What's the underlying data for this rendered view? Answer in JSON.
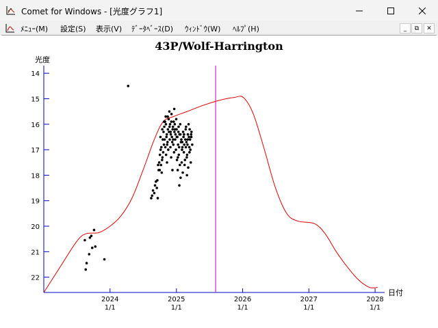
{
  "window": {
    "title": "Comet for Windows - [光度グラフ1]",
    "icon": "chart-icon",
    "buttons": {
      "minimize": "─",
      "maximize": "☐",
      "close": "✕"
    }
  },
  "menubar": {
    "items": [
      "ﾒﾆｭｰ(M)",
      "設定(S)",
      "表示(V)",
      "ﾃﾞｰﾀﾍﾞｰｽ(D)",
      "ｳｨﾝﾄﾞｳ(W)",
      "ﾍﾙﾌﾟ(H)"
    ],
    "mdi_buttons": [
      "_",
      "⧉",
      "✕"
    ]
  },
  "chart_data": {
    "type": "scatter",
    "title": "43P/Wolf-Harrington",
    "ylabel": "光度",
    "xlabel": "日付",
    "ylim": [
      14,
      22.6
    ],
    "y_inverted": true,
    "xlim": [
      "2023-01-01",
      "2028-02-15"
    ],
    "yticks": [
      14,
      15,
      16,
      17,
      18,
      19,
      20,
      21,
      22
    ],
    "xticks": [
      {
        "date": "2024-01-01",
        "label1": "2024",
        "label2": "1/1"
      },
      {
        "date": "2025-01-01",
        "label1": "2025",
        "label2": "1/1"
      },
      {
        "date": "2026-01-01",
        "label1": "2026",
        "label2": "1/1"
      },
      {
        "date": "2027-01-01",
        "label1": "2027",
        "label2": "1/1"
      },
      {
        "date": "2028-01-01",
        "label1": "2028",
        "label2": "1/1"
      }
    ],
    "current_date": "2025-08-05",
    "colors": {
      "curve": "#e00000",
      "current_line": "#c000c0",
      "axis": "#0000c0",
      "points": "#000000"
    },
    "predicted_curve": [
      [
        "2023-01-01",
        22.6
      ],
      [
        "2023-04-01",
        21.6
      ],
      [
        "2023-07-01",
        20.6
      ],
      [
        "2023-08-20",
        20.3
      ],
      [
        "2023-11-01",
        20.25
      ],
      [
        "2024-01-01",
        20.0
      ],
      [
        "2024-03-01",
        19.6
      ],
      [
        "2024-05-01",
        18.9
      ],
      [
        "2024-07-01",
        17.8
      ],
      [
        "2024-09-01",
        16.6
      ],
      [
        "2024-10-20",
        15.9
      ],
      [
        "2024-12-15",
        15.7
      ],
      [
        "2025-03-01",
        15.5
      ],
      [
        "2025-06-01",
        15.25
      ],
      [
        "2025-09-01",
        15.05
      ],
      [
        "2025-11-15",
        14.95
      ],
      [
        "2026-01-05",
        14.95
      ],
      [
        "2026-03-01",
        15.6
      ],
      [
        "2026-05-01",
        17.0
      ],
      [
        "2026-07-01",
        18.5
      ],
      [
        "2026-09-01",
        19.5
      ],
      [
        "2026-11-01",
        19.8
      ],
      [
        "2027-02-01",
        19.9
      ],
      [
        "2027-04-01",
        20.3
      ],
      [
        "2027-06-01",
        21.0
      ],
      [
        "2027-08-01",
        21.6
      ],
      [
        "2027-10-01",
        22.1
      ],
      [
        "2027-12-01",
        22.4
      ],
      [
        "2028-01-15",
        22.4
      ]
    ],
    "observations": [
      [
        "2024-04-10",
        14.5
      ],
      [
        "2023-09-12",
        20.45
      ],
      [
        "2023-09-20",
        20.38
      ],
      [
        "2023-10-05",
        20.15
      ],
      [
        "2023-10-12",
        20.8
      ],
      [
        "2023-09-25",
        20.85
      ],
      [
        "2023-09-08",
        21.1
      ],
      [
        "2023-08-25",
        21.45
      ],
      [
        "2023-08-20",
        21.7
      ],
      [
        "2023-12-01",
        21.3
      ],
      [
        "2023-08-15",
        20.55
      ],
      [
        "2024-08-15",
        18.9
      ],
      [
        "2024-08-20",
        18.8
      ],
      [
        "2024-08-25",
        18.6
      ],
      [
        "2024-09-01",
        18.7
      ],
      [
        "2024-09-05",
        18.4
      ],
      [
        "2024-09-10",
        18.25
      ],
      [
        "2024-09-15",
        18.5
      ],
      [
        "2024-09-20",
        18.9
      ],
      [
        "2024-09-25",
        17.8
      ],
      [
        "2024-09-28",
        17.5
      ],
      [
        "2024-10-02",
        17.2
      ],
      [
        "2024-10-06",
        17.0
      ],
      [
        "2024-10-10",
        16.9
      ],
      [
        "2024-10-14",
        17.4
      ],
      [
        "2024-10-18",
        16.6
      ],
      [
        "2024-10-22",
        16.3
      ],
      [
        "2024-10-26",
        16.1
      ],
      [
        "2024-10-30",
        15.9
      ],
      [
        "2024-11-03",
        15.7
      ],
      [
        "2024-11-07",
        16.5
      ],
      [
        "2024-11-11",
        16.8
      ],
      [
        "2024-11-15",
        16.2
      ],
      [
        "2024-11-19",
        15.8
      ],
      [
        "2024-11-23",
        15.5
      ],
      [
        "2024-11-27",
        16.0
      ],
      [
        "2024-12-01",
        16.4
      ],
      [
        "2024-12-05",
        15.6
      ],
      [
        "2024-12-09",
        16.7
      ],
      [
        "2024-12-13",
        16.1
      ],
      [
        "2024-12-17",
        15.9
      ],
      [
        "2024-12-21",
        16.3
      ],
      [
        "2024-12-25",
        16.6
      ],
      [
        "2024-12-29",
        17.0
      ],
      [
        "2025-01-02",
        16.2
      ],
      [
        "2025-01-06",
        16.5
      ],
      [
        "2025-01-10",
        16.8
      ],
      [
        "2025-01-14",
        17.2
      ],
      [
        "2025-01-18",
        16.4
      ],
      [
        "2025-01-22",
        16.0
      ],
      [
        "2025-01-26",
        16.7
      ],
      [
        "2025-01-30",
        17.5
      ],
      [
        "2025-02-03",
        16.9
      ],
      [
        "2025-02-07",
        16.3
      ],
      [
        "2025-02-11",
        17.1
      ],
      [
        "2025-02-15",
        17.6
      ],
      [
        "2025-02-19",
        16.6
      ],
      [
        "2025-02-23",
        16.1
      ],
      [
        "2025-02-27",
        17.3
      ],
      [
        "2025-03-03",
        16.8
      ],
      [
        "2025-03-07",
        17.7
      ],
      [
        "2025-03-11",
        16.5
      ],
      [
        "2025-03-15",
        16.2
      ],
      [
        "2025-03-19",
        17.0
      ],
      [
        "2025-03-23",
        16.4
      ],
      [
        "2024-10-08",
        17.6
      ],
      [
        "2024-10-12",
        17.9
      ],
      [
        "2024-10-16",
        17.3
      ],
      [
        "2024-10-20",
        17.1
      ],
      [
        "2024-10-24",
        16.8
      ],
      [
        "2024-10-28",
        16.6
      ],
      [
        "2024-11-01",
        16.9
      ],
      [
        "2024-11-05",
        17.2
      ],
      [
        "2024-11-09",
        16.4
      ],
      [
        "2024-11-13",
        16.7
      ],
      [
        "2024-11-17",
        17.0
      ],
      [
        "2024-11-21",
        16.3
      ],
      [
        "2024-11-25",
        16.6
      ],
      [
        "2024-11-29",
        16.9
      ],
      [
        "2024-12-03",
        17.3
      ],
      [
        "2024-12-07",
        16.5
      ],
      [
        "2024-12-11",
        16.2
      ],
      [
        "2024-12-15",
        16.8
      ],
      [
        "2024-12-19",
        17.1
      ],
      [
        "2024-12-23",
        16.0
      ],
      [
        "2024-12-27",
        16.4
      ],
      [
        "2024-12-31",
        15.8
      ],
      [
        "2025-01-04",
        17.4
      ],
      [
        "2025-01-08",
        17.8
      ],
      [
        "2025-01-12",
        16.3
      ],
      [
        "2025-01-16",
        16.9
      ],
      [
        "2025-01-20",
        17.6
      ],
      [
        "2025-01-24",
        18.1
      ],
      [
        "2025-01-28",
        16.6
      ],
      [
        "2025-02-01",
        17.0
      ],
      [
        "2025-02-05",
        17.9
      ],
      [
        "2025-02-09",
        16.5
      ],
      [
        "2025-02-13",
        16.8
      ],
      [
        "2025-02-17",
        17.4
      ],
      [
        "2025-02-21",
        16.2
      ],
      [
        "2025-02-25",
        16.7
      ],
      [
        "2025-03-01",
        17.2
      ],
      [
        "2025-03-05",
        16.4
      ],
      [
        "2025-03-09",
        16.0
      ],
      [
        "2025-03-13",
        16.9
      ],
      [
        "2025-03-17",
        16.6
      ],
      [
        "2025-03-21",
        17.5
      ],
      [
        "2025-03-25",
        16.3
      ],
      [
        "2025-03-29",
        16.8
      ],
      [
        "2024-10-05",
        16.5
      ],
      [
        "2024-10-15",
        16.2
      ],
      [
        "2024-10-25",
        15.9
      ],
      [
        "2024-11-04",
        16.0
      ],
      [
        "2024-11-14",
        15.7
      ],
      [
        "2024-11-24",
        16.1
      ],
      [
        "2024-12-04",
        15.9
      ],
      [
        "2024-12-14",
        16.6
      ],
      [
        "2024-12-24",
        16.2
      ],
      [
        "2025-01-03",
        16.5
      ],
      [
        "2025-01-13",
        16.1
      ],
      [
        "2025-01-23",
        16.4
      ],
      [
        "2025-02-02",
        16.7
      ],
      [
        "2025-02-12",
        16.4
      ],
      [
        "2025-02-22",
        16.9
      ],
      [
        "2025-03-04",
        16.6
      ],
      [
        "2025-03-14",
        17.1
      ],
      [
        "2025-03-24",
        16.5
      ],
      [
        "2024-10-01",
        17.8
      ],
      [
        "2024-09-22",
        17.6
      ],
      [
        "2024-11-30",
        16.3
      ],
      [
        "2024-12-20",
        15.4
      ],
      [
        "2025-01-17",
        18.4
      ],
      [
        "2025-02-28",
        18.0
      ],
      [
        "2024-09-18",
        18.2
      ],
      [
        "2024-11-10",
        17.5
      ],
      [
        "2024-12-10",
        17.8
      ],
      [
        "2025-01-09",
        17.3
      ]
    ]
  }
}
